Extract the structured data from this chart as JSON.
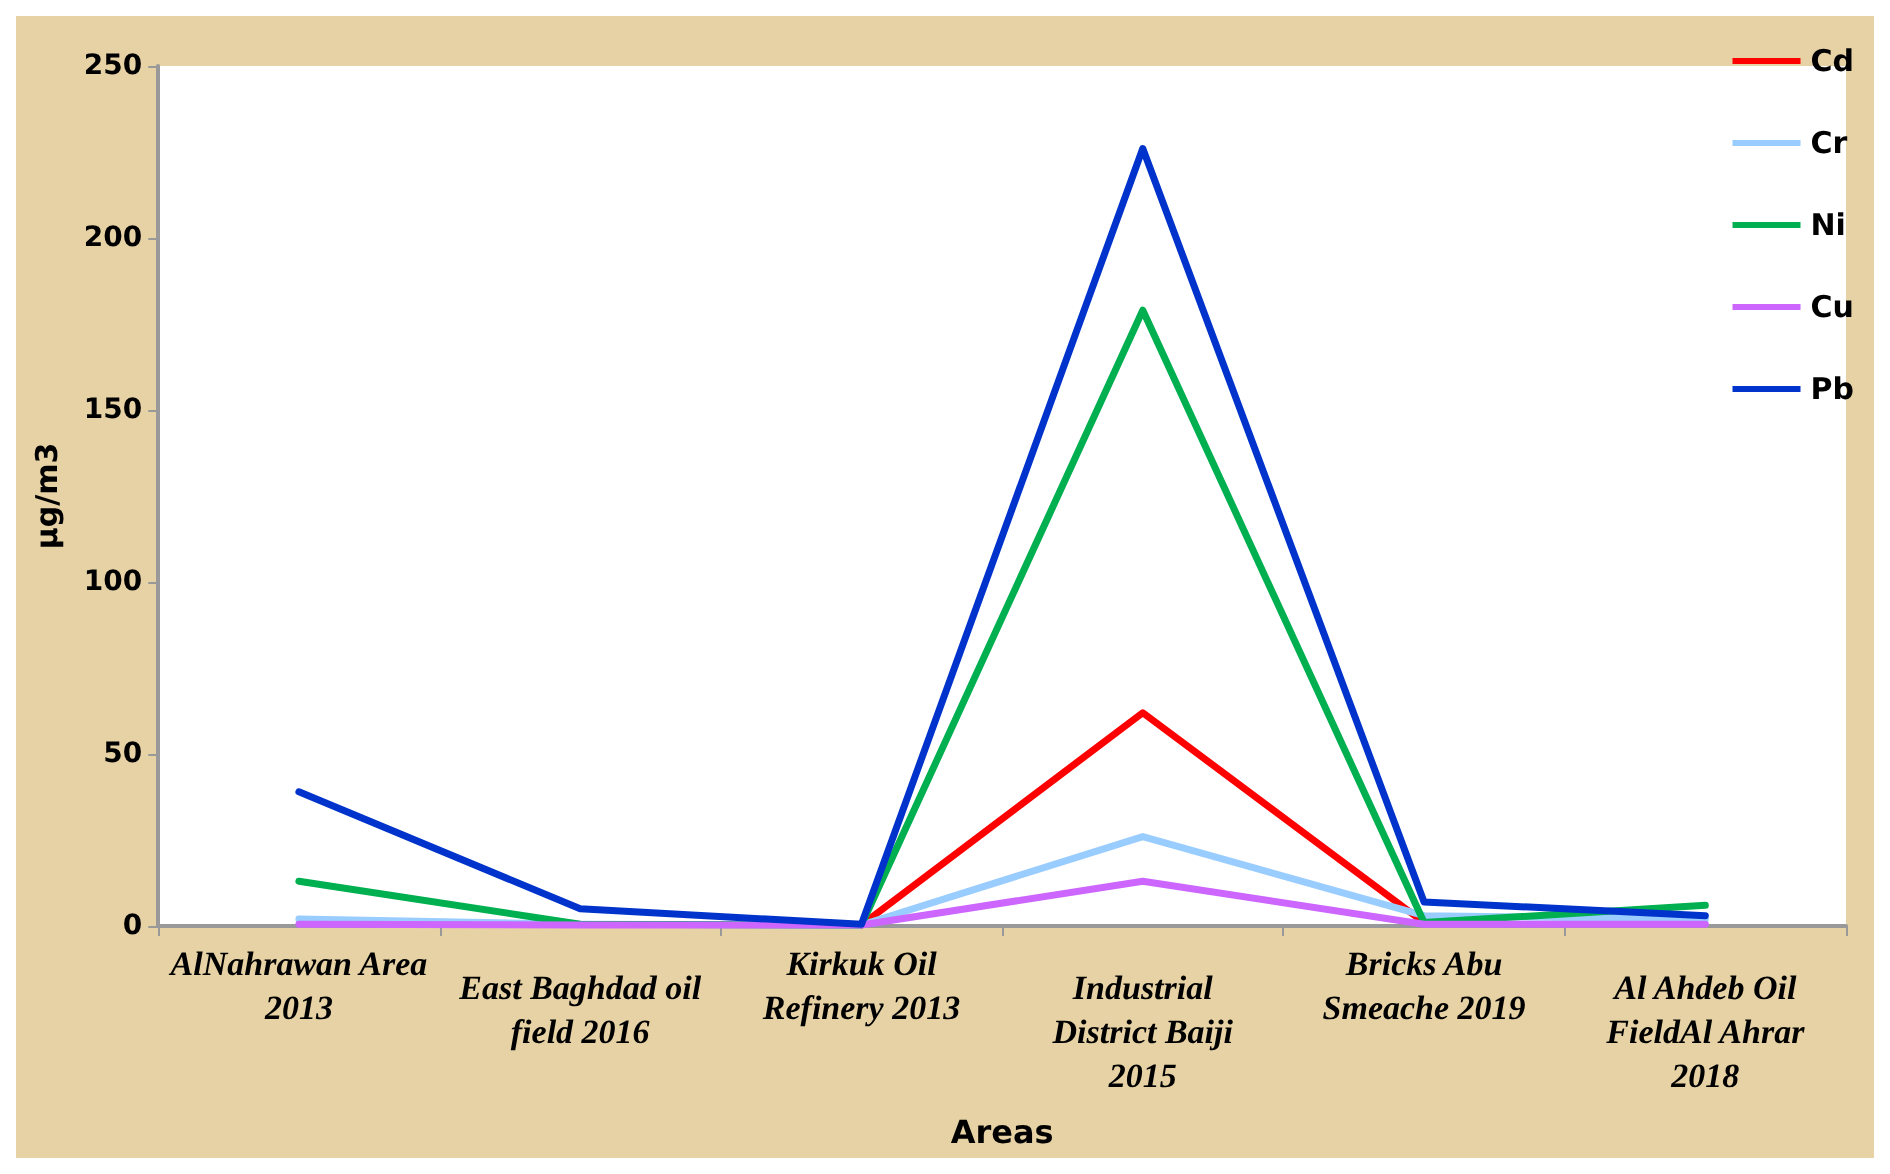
{
  "chart_data": {
    "type": "line",
    "xlabel": "Areas",
    "ylabel": "µg/m3",
    "categories": [
      "AlNahrawan Area 2013",
      "East Baghdad oil field 2016",
      "Kirkuk Oil Refinery 2013",
      "Industrial District Baiji 2015",
      "Bricks Abu Smeache 2019",
      "Al Ahdeb Oil FieldAl Ahrar 2018"
    ],
    "series": [
      {
        "name": "Cd",
        "color": "#ff0000",
        "values": [
          null,
          null,
          0.3,
          62,
          1,
          null
        ]
      },
      {
        "name": "Cr",
        "color": "#99ccff",
        "values": [
          2,
          0.5,
          0.3,
          26,
          3,
          2
        ]
      },
      {
        "name": "Ni",
        "color": "#00b050",
        "values": [
          13,
          0.5,
          0.3,
          179,
          1,
          6
        ]
      },
      {
        "name": "Cu",
        "color": "#cc66ff",
        "values": [
          0.5,
          0.3,
          0.3,
          13,
          0.5,
          0.5
        ]
      },
      {
        "name": "Pb",
        "color": "#0033cc",
        "values": [
          39,
          5,
          0.5,
          226,
          7,
          3
        ]
      }
    ],
    "ylim": [
      0,
      250
    ],
    "yticks": [
      0,
      50,
      100,
      150,
      200,
      250
    ],
    "grid": false,
    "legend": "top right",
    "marker": "none",
    "line_style": "solid"
  }
}
